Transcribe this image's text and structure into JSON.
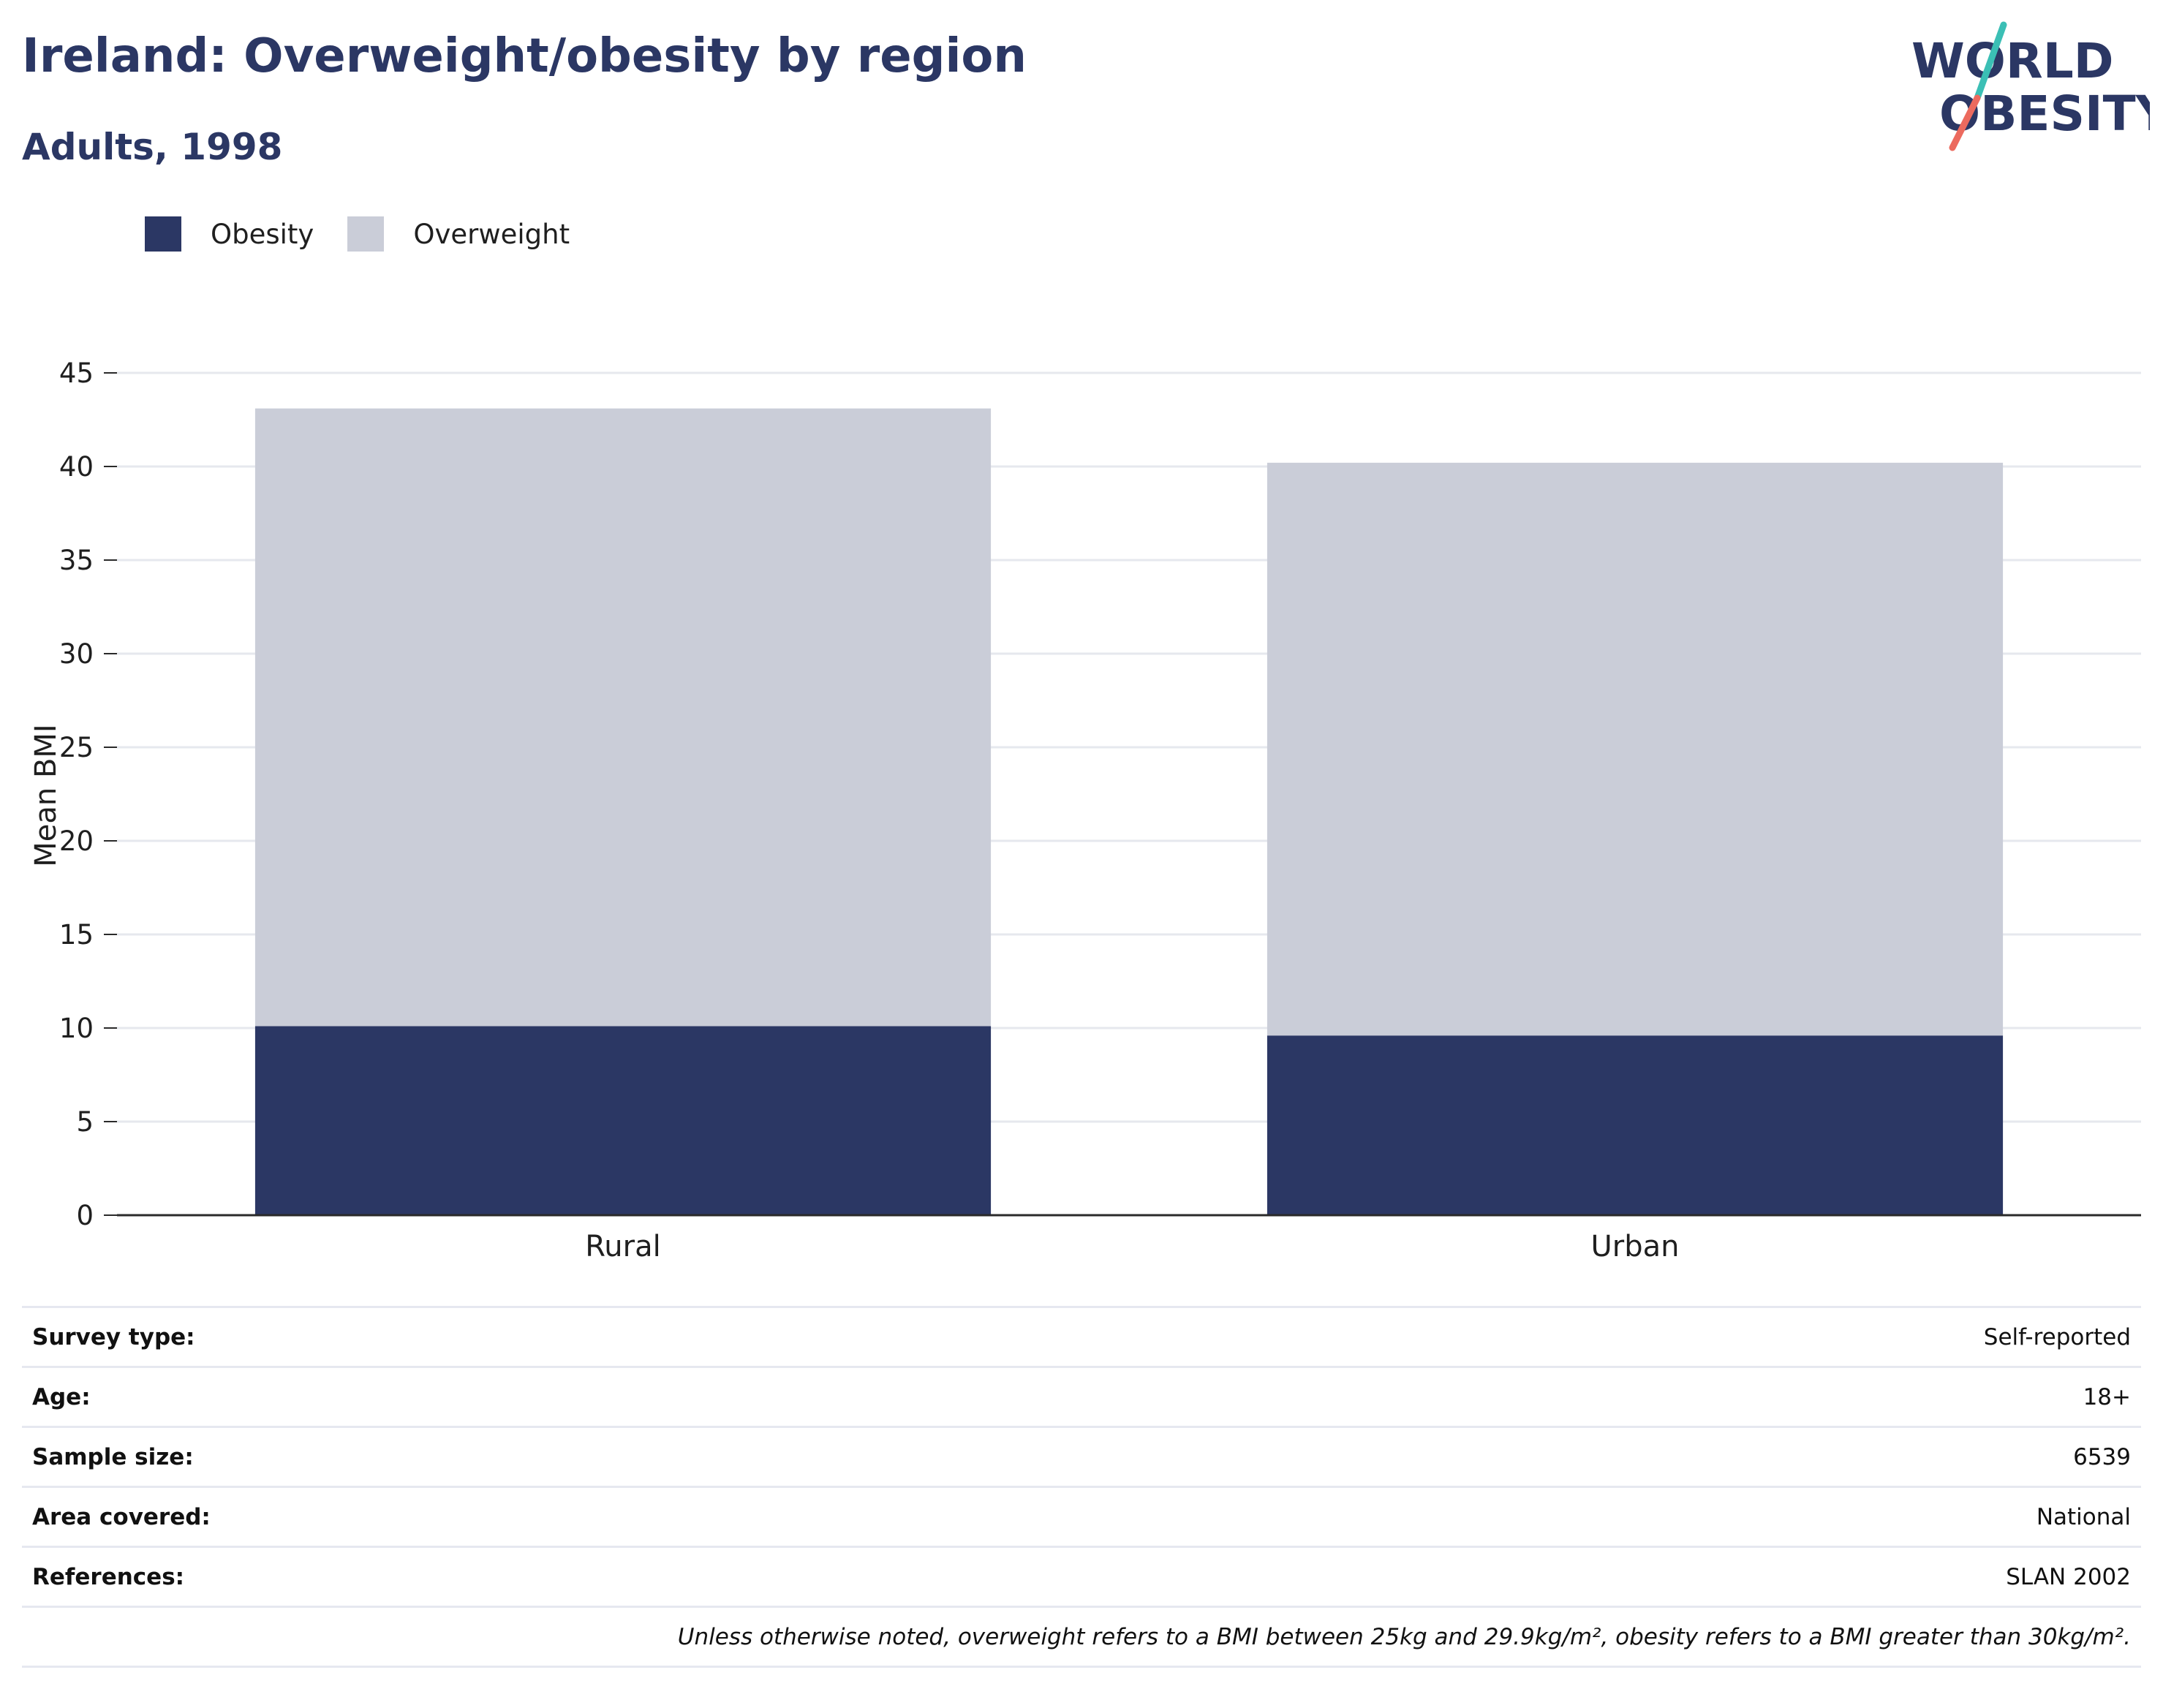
{
  "header": {
    "title": "Ireland: Overweight/obesity by region",
    "subtitle": "Adults, 1998"
  },
  "logo": {
    "line1": "WORLD",
    "line2": "OBESITY"
  },
  "colors": {
    "obesity": "#2b3764",
    "overweight": "#cacdd8",
    "grid": "#e6e8ee",
    "axis": "#2a2a2a"
  },
  "chart_data": {
    "type": "bar",
    "stacked": true,
    "categories": [
      "Rural",
      "Urban"
    ],
    "series": [
      {
        "name": "Obesity",
        "values": [
          10.1,
          9.6
        ]
      },
      {
        "name": "Overweight",
        "values": [
          33.0,
          30.6
        ]
      }
    ],
    "ylabel": "Mean BMI",
    "xlabel": "",
    "ylim": [
      0,
      45
    ],
    "yticks": [
      0,
      5,
      10,
      15,
      20,
      25,
      30,
      35,
      40,
      45
    ],
    "grid": true,
    "legend_position": "top-left"
  },
  "info": [
    {
      "key": "Survey type:",
      "value": "Self-reported"
    },
    {
      "key": "Age:",
      "value": "18+"
    },
    {
      "key": "Sample size:",
      "value": "6539"
    },
    {
      "key": "Area covered:",
      "value": "National"
    },
    {
      "key": "References:",
      "value": "SLAN 2002"
    }
  ],
  "note": "Unless otherwise noted, overweight refers to a BMI between 25kg and 29.9kg/m², obesity refers to a BMI greater than 30kg/m²."
}
